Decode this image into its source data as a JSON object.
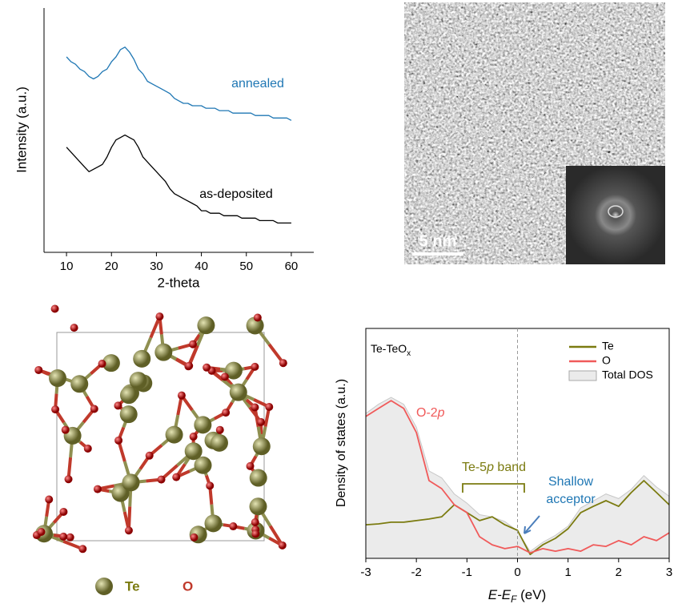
{
  "chart_data": [
    {
      "type": "line",
      "x_label": "2-theta",
      "y_label": "Intensity (a.u.)",
      "x": [
        10,
        11,
        12,
        13,
        14,
        15,
        16,
        17,
        18,
        19,
        20,
        21,
        22,
        23,
        24,
        25,
        26,
        27,
        28,
        29,
        30,
        31,
        32,
        33,
        34,
        35,
        36,
        37,
        38,
        39,
        40,
        41,
        42,
        43,
        44,
        45,
        46,
        47,
        48,
        49,
        50,
        51,
        52,
        53,
        54,
        55,
        56,
        57,
        58,
        59,
        60
      ],
      "xlim": [
        5,
        65
      ],
      "xticks": [
        10,
        20,
        30,
        40,
        50,
        60
      ],
      "ylim": [
        0,
        100
      ],
      "series": [
        {
          "name": "annealed",
          "color": "#1f77b4",
          "values": [
            80,
            78,
            77,
            75,
            74,
            72,
            71,
            72,
            74,
            75,
            78,
            80,
            83,
            84,
            82,
            79,
            75,
            73,
            70,
            69,
            68,
            67,
            66,
            65,
            63,
            62,
            61,
            61,
            60,
            60,
            60,
            59,
            59,
            59,
            58,
            58,
            58,
            57,
            57,
            57,
            57,
            57,
            56,
            56,
            56,
            56,
            55,
            55,
            55,
            55,
            54
          ]
        },
        {
          "name": "as-deposited",
          "color": "#000000",
          "values": [
            43,
            41,
            39,
            37,
            35,
            33,
            34,
            35,
            36,
            39,
            43,
            46,
            47,
            48,
            47,
            46,
            43,
            39,
            37,
            35,
            33,
            31,
            29,
            26,
            24,
            23,
            22,
            21,
            20,
            19,
            17,
            17,
            16,
            16,
            16,
            15,
            15,
            15,
            15,
            14,
            14,
            14,
            14,
            13,
            13,
            13,
            13,
            12,
            12,
            12,
            12
          ]
        }
      ]
    },
    {
      "type": "line",
      "title": {
        "main": "Te-TeO",
        "sub": "x"
      },
      "x_label": {
        "main": "E-E",
        "sub": "F",
        "unit": " (eV)"
      },
      "y_label": "Density of states (a.u.)",
      "x": [
        -3,
        -2.75,
        -2.5,
        -2.25,
        -2,
        -1.75,
        -1.5,
        -1.25,
        -1,
        -0.75,
        -0.5,
        -0.25,
        0,
        0.25,
        0.5,
        0.75,
        1,
        1.25,
        1.5,
        1.75,
        2,
        2.25,
        2.5,
        2.75,
        3
      ],
      "xlim": [
        -3,
        3
      ],
      "xticks": [
        -3,
        -2,
        -1,
        0,
        1,
        2,
        3
      ],
      "ylim": [
        0,
        100
      ],
      "legend": "upper right",
      "series": [
        {
          "name": "Te",
          "color": "#7b7b10",
          "values": [
            14.6,
            15,
            15.7,
            15.7,
            16.4,
            17.1,
            18.1,
            23.3,
            19.9,
            16.4,
            18.1,
            14.6,
            12.2,
            1.7,
            5.9,
            8.7,
            12.9,
            19.9,
            22.6,
            25.1,
            22.6,
            28.6,
            33.8,
            28.6,
            23.3
          ]
        },
        {
          "name": "O",
          "color": "#f05a5a",
          "values": [
            61.7,
            65.2,
            68.6,
            65.2,
            54.7,
            33.8,
            30.3,
            23.3,
            19.9,
            9.4,
            5.9,
            4.2,
            5.2,
            2.4,
            4.2,
            3.1,
            4.2,
            3.1,
            5.9,
            5.2,
            7.7,
            5.9,
            9.4,
            7.7,
            11.1
          ]
        },
        {
          "name": "Total DOS",
          "color": "#ebebeb",
          "fill": true,
          "values": [
            63,
            67,
            70,
            67,
            57,
            38,
            35,
            28,
            24,
            19,
            18,
            16,
            12,
            3,
            7,
            10,
            14,
            22,
            25,
            28,
            26,
            30,
            36,
            31,
            27
          ]
        }
      ],
      "annotations": [
        {
          "parts": [
            {
              "text": "O-2"
            },
            {
              "text": "p",
              "italic": true
            }
          ],
          "color": "#f05a5a"
        },
        {
          "parts": [
            {
              "text": "Te-5"
            },
            {
              "text": "p",
              "italic": true
            },
            {
              "text": " band"
            }
          ],
          "color": "#7b7b10"
        },
        {
          "lines": [
            "Shallow",
            "acceptor"
          ],
          "color": "#1f77b4"
        }
      ]
    }
  ],
  "tem_image": {
    "scale_bar": "5 nm"
  },
  "structure": {
    "legend": [
      {
        "name": "Te",
        "color": "#7b7b10"
      },
      {
        "name": "O",
        "color": "#c0392b"
      }
    ]
  }
}
